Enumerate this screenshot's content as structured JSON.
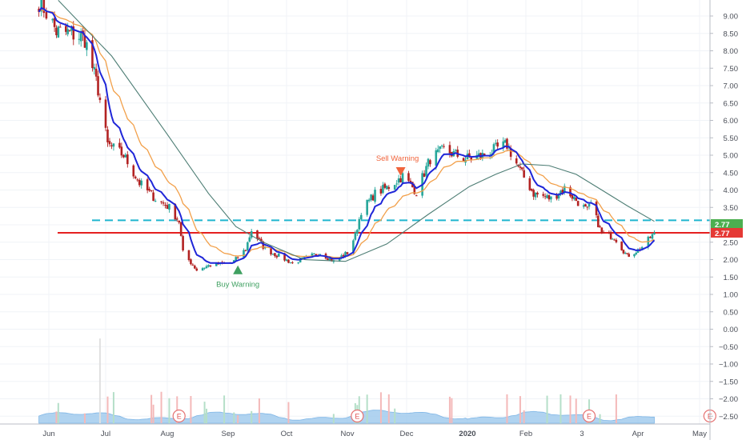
{
  "chart_data": {
    "type": "line",
    "subtype": "candlestick-with-moving-averages",
    "title": "",
    "xlabel": "",
    "ylabel": "",
    "x_ticks": [
      "Jun",
      "Jul",
      "Aug",
      "Sep",
      "Oct",
      "Nov",
      "Dec",
      "2020",
      "Feb",
      "3",
      "Apr",
      "May"
    ],
    "y_ticks": [
      "9.00",
      "8.50",
      "8.00",
      "7.50",
      "7.00",
      "6.50",
      "6.00",
      "5.50",
      "5.00",
      "4.50",
      "4.00",
      "3.50",
      "3.00",
      "2.50",
      "2.00",
      "1.50",
      "1.00",
      "0.50",
      "0.00",
      "−0.50",
      "−1.00",
      "−1.50",
      "−2.00",
      "−2.50"
    ],
    "ylim": [
      -2.65,
      9.45
    ],
    "price_axis_position": "right",
    "grid": true,
    "last_price_labels": [
      {
        "text": "2.77",
        "color": "#4caf50"
      },
      {
        "text": "2.77",
        "color": "#e53935"
      }
    ],
    "horizontal_lines": [
      {
        "value": 2.77,
        "style": "solid",
        "color": "#e52020"
      },
      {
        "value": 3.13,
        "style": "dashed",
        "color": "#1fb5cf"
      }
    ],
    "annotations": [
      {
        "text": "Buy Warning",
        "x": "2019-09-06",
        "y": 1.65,
        "marker": "up-triangle",
        "color": "#3fa061"
      },
      {
        "text": "Sell Warning",
        "x": "2019-11-28",
        "y": 4.47,
        "marker": "down-triangle",
        "color": "#f0643c"
      }
    ],
    "earnings_markers": [
      {
        "label": "E",
        "x": "2019-08-07"
      },
      {
        "label": "E",
        "x": "2019-11-06"
      },
      {
        "label": "E",
        "x": "2020-03-05"
      },
      {
        "label": "E",
        "x": "2020-05-07"
      }
    ],
    "candles": {
      "up_color": "#26a69a",
      "down_color": "#b22222",
      "x_start": "2019-05-28",
      "x_end": "2020-04-09",
      "close_anchors": [
        [
          "2019-05-28",
          9.45
        ],
        [
          "2019-06-05",
          8.55
        ],
        [
          "2019-06-13",
          8.5
        ],
        [
          "2019-06-20",
          8.35
        ],
        [
          "2019-06-27",
          6.9
        ],
        [
          "2019-07-02",
          5.3
        ],
        [
          "2019-07-10",
          5.0
        ],
        [
          "2019-07-18",
          4.2
        ],
        [
          "2019-07-26",
          3.75
        ],
        [
          "2019-08-02",
          3.5
        ],
        [
          "2019-08-07",
          3.1
        ],
        [
          "2019-08-09",
          2.2
        ],
        [
          "2019-08-16",
          1.7
        ],
        [
          "2019-08-23",
          1.85
        ],
        [
          "2019-09-03",
          1.9
        ],
        [
          "2019-09-10",
          2.3
        ],
        [
          "2019-09-13",
          2.85
        ],
        [
          "2019-09-20",
          2.3
        ],
        [
          "2019-09-27",
          2.1
        ],
        [
          "2019-10-04",
          1.9
        ],
        [
          "2019-10-11",
          2.05
        ],
        [
          "2019-10-18",
          2.2
        ],
        [
          "2019-10-25",
          1.95
        ],
        [
          "2019-11-01",
          2.2
        ],
        [
          "2019-11-05",
          2.7
        ],
        [
          "2019-11-08",
          3.4
        ],
        [
          "2019-11-15",
          3.9
        ],
        [
          "2019-11-22",
          4.1
        ],
        [
          "2019-11-29",
          4.4
        ],
        [
          "2019-12-06",
          3.95
        ],
        [
          "2019-12-13",
          4.9
        ],
        [
          "2019-12-20",
          5.15
        ],
        [
          "2019-12-31",
          4.9
        ],
        [
          "2020-01-10",
          5.0
        ],
        [
          "2020-01-17",
          5.2
        ],
        [
          "2020-01-22",
          5.3
        ],
        [
          "2020-01-29",
          4.55
        ],
        [
          "2020-02-05",
          3.9
        ],
        [
          "2020-02-14",
          3.75
        ],
        [
          "2020-02-21",
          4.05
        ],
        [
          "2020-02-28",
          3.65
        ],
        [
          "2020-03-04",
          3.4
        ],
        [
          "2020-03-06",
          3.6
        ],
        [
          "2020-03-12",
          2.75
        ],
        [
          "2020-03-19",
          2.65
        ],
        [
          "2020-03-26",
          2.1
        ],
        [
          "2020-04-02",
          2.3
        ],
        [
          "2020-04-09",
          2.77
        ]
      ]
    },
    "series": [
      {
        "kind": "ema-fast",
        "color": "#1f26d8",
        "width": 2
      },
      {
        "kind": "ema-mid",
        "color": "#f2a04a",
        "width": 1.3
      },
      {
        "kind": "sma-slow",
        "color": "#4d7d74",
        "width": 1.1,
        "x": [
          "2019-06-06",
          "2019-07-04",
          "2019-08-01",
          "2019-08-22",
          "2019-09-05",
          "2019-09-19",
          "2019-10-10",
          "2019-10-31",
          "2019-11-21",
          "2019-12-12",
          "2020-01-02",
          "2020-01-16",
          "2020-01-30",
          "2020-02-13",
          "2020-02-27",
          "2020-03-12",
          "2020-03-26",
          "2020-04-09"
        ],
        "values": [
          9.45,
          7.85,
          5.6,
          3.9,
          2.95,
          2.5,
          2.0,
          1.95,
          2.45,
          3.3,
          4.1,
          4.45,
          4.75,
          4.7,
          4.45,
          4.0,
          3.55,
          3.1
        ]
      }
    ],
    "volume": {
      "area_color": "#9cc8ec",
      "bar_up_color": "#b5dfc8",
      "bar_down_color": "#f4b9b9",
      "spike_x": "2019-06-28",
      "spike_height_fraction": 0.32
    }
  }
}
